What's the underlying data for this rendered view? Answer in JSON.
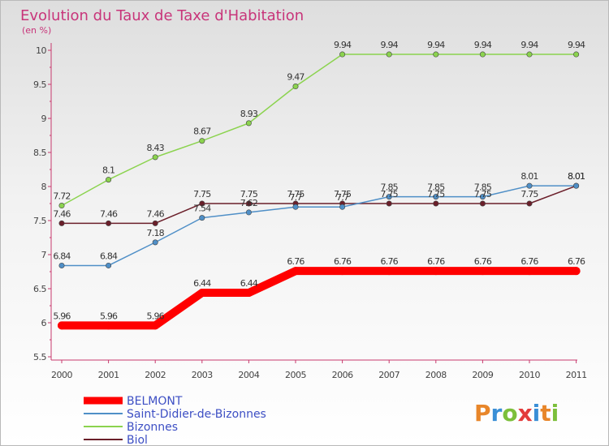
{
  "chart_data": {
    "type": "line",
    "title": "Evolution du Taux de Taxe d'Habitation",
    "subtitle": "(en %)",
    "x": [
      "2000",
      "2001",
      "2002",
      "2003",
      "2004",
      "2005",
      "2006",
      "2007",
      "2008",
      "2009",
      "2010",
      "2011"
    ],
    "ylim": [
      5.5,
      10
    ],
    "yticks": [
      "5.5",
      "6",
      "6.5",
      "7",
      "7.5",
      "8",
      "8.5",
      "9",
      "9.5",
      "10"
    ],
    "grid": false,
    "legend_position": "bottom-left",
    "series": [
      {
        "name": "BELMONT",
        "color": "#ff0000",
        "values": [
          5.96,
          5.96,
          5.96,
          6.44,
          6.44,
          6.76,
          6.76,
          6.76,
          6.76,
          6.76,
          6.76,
          6.76
        ],
        "labels": [
          "5.96",
          "5.96",
          "5.96",
          "6.44",
          "6.44",
          "6.76",
          "6.76",
          "6.76",
          "6.76",
          "6.76",
          "6.76",
          "6.76"
        ]
      },
      {
        "name": "Saint-Didier-de-Bizonnes",
        "color": "#4f8fc7",
        "values": [
          6.84,
          6.84,
          7.18,
          7.54,
          7.62,
          7.7,
          7.7,
          7.85,
          7.85,
          7.85,
          8.01,
          8.01
        ],
        "labels": [
          "6.84",
          "6.84",
          "7.18",
          "7.54",
          "7.62",
          "7.7",
          "7.7",
          "7.85",
          "7.85",
          "7.85",
          "8.01",
          "8.01"
        ]
      },
      {
        "name": "Bizonnes",
        "color": "#8bd34e",
        "values": [
          7.72,
          8.1,
          8.43,
          8.67,
          8.93,
          9.47,
          9.94,
          9.94,
          9.94,
          9.94,
          9.94,
          9.94
        ],
        "labels": [
          "7.72",
          "8.1",
          "8.43",
          "8.67",
          "8.93",
          "9.47",
          "9.94",
          "9.94",
          "9.94",
          "9.94",
          "9.94",
          "9.94"
        ]
      },
      {
        "name": "Biol",
        "color": "#6b1f2a",
        "values": [
          7.46,
          7.46,
          7.46,
          7.75,
          7.75,
          7.75,
          7.75,
          7.75,
          7.75,
          7.75,
          7.75,
          8.01
        ],
        "labels": [
          "7.46",
          "7.46",
          "7.46",
          "7.75",
          "7.75",
          "7.75",
          "7.75",
          "7.75",
          "7.75",
          "7.75",
          "7.75",
          "8.01"
        ]
      }
    ]
  },
  "logo": {
    "text": "Proxiti",
    "colors": [
      "#e8862a",
      "#3a8fd6",
      "#7cbf3a",
      "#e33b3b",
      "#3a8fd6",
      "#e8862a",
      "#7cbf3a"
    ]
  }
}
